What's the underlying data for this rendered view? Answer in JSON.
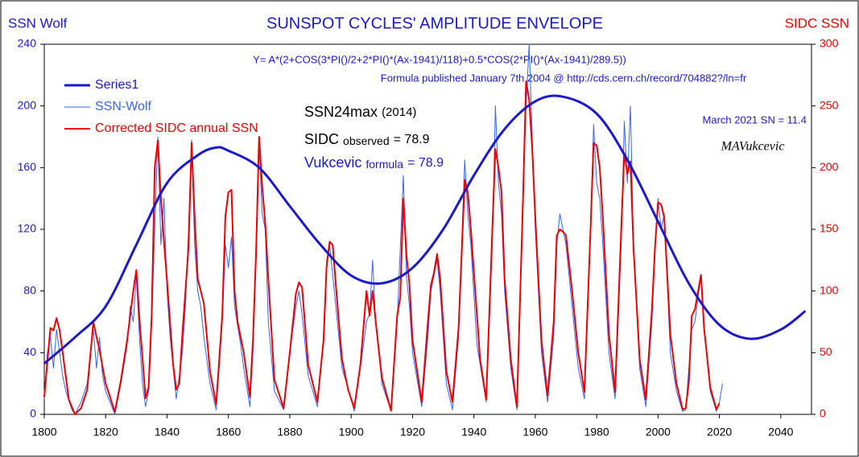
{
  "chart_data": {
    "type": "line",
    "title": "SUNSPOT  CYCLES'  AMPLITUDE  ENVELOPE",
    "y_label": "SSN Wolf",
    "y2_label": "SIDC  SSN",
    "formula": "Y= A*(2+COS(3*PI()/2+2*PI()*(Ax-1941)/118)+0.5*COS(2*PI()*(Ax-1941)/289.5))",
    "formula_note": "Formula published January 7th 2004    @  http://cds.cern.ch/record/704882?/ln=fr",
    "ssn24max": {
      "label": "SSN24max",
      "year": "(2014)"
    },
    "sidc_observed": {
      "label": "SIDC",
      "sub": "observed",
      "value": "= 78.9"
    },
    "vukcevic_formula": {
      "label": "Vukcevic",
      "sub": "formula",
      "value": "= 78.9"
    },
    "march_note": "March 2021 SN = 11.4",
    "signature": "MAVukcevic",
    "legend": "upper left",
    "xlim": [
      1800,
      2050
    ],
    "xticks": [
      1800,
      1820,
      1840,
      1860,
      1880,
      1900,
      1920,
      1940,
      1960,
      1980,
      2000,
      2020,
      2040
    ],
    "ylim": [
      0,
      240
    ],
    "yticks": [
      0,
      40,
      80,
      120,
      160,
      200,
      240
    ],
    "y2lim": [
      0,
      300
    ],
    "y2ticks": [
      0,
      50,
      100,
      150,
      200,
      250,
      300
    ],
    "series": [
      {
        "name": "SSN-Wolf",
        "color": "#3366ff",
        "width": 1,
        "axis": "y",
        "x": [
          1800,
          1801,
          1802,
          1803,
          1804,
          1805,
          1806,
          1807,
          1809,
          1810,
          1812,
          1814,
          1815,
          1816,
          1817,
          1818,
          1819,
          1820,
          1822,
          1823,
          1825,
          1827,
          1828,
          1829,
          1830,
          1831,
          1832,
          1833,
          1834,
          1835,
          1836,
          1837,
          1838,
          1839,
          1840,
          1841,
          1843,
          1845,
          1846,
          1847,
          1848,
          1849,
          1850,
          1851,
          1852,
          1854,
          1856,
          1857,
          1858,
          1859,
          1860,
          1861,
          1862,
          1864,
          1865,
          1867,
          1868,
          1869,
          1870,
          1871,
          1872,
          1873,
          1875,
          1878,
          1880,
          1882,
          1883,
          1884,
          1886,
          1889,
          1891,
          1892,
          1893,
          1894,
          1895,
          1897,
          1900,
          1901,
          1903,
          1905,
          1906,
          1907,
          1908,
          1910,
          1913,
          1915,
          1917,
          1918,
          1919,
          1920,
          1923,
          1925,
          1926,
          1928,
          1929,
          1931,
          1933,
          1935,
          1936,
          1937,
          1938,
          1939,
          1941,
          1944,
          1946,
          1947,
          1948,
          1949,
          1950,
          1952,
          1954,
          1956,
          1957,
          1958,
          1959,
          1960,
          1962,
          1964,
          1966,
          1967,
          1968,
          1969,
          1970,
          1972,
          1974,
          1976,
          1978,
          1979,
          1980,
          1981,
          1982,
          1984,
          1986,
          1988,
          1989,
          1990,
          1991,
          1992,
          1994,
          1996,
          1998,
          1999,
          2000,
          2001,
          2002,
          2004,
          2006,
          2008,
          2009,
          2011,
          2012,
          2014,
          2015,
          2017,
          2019,
          2020,
          2021
        ],
        "values": [
          10,
          40,
          50,
          30,
          55,
          40,
          25,
          15,
          3,
          0,
          8,
          20,
          40,
          55,
          30,
          50,
          25,
          15,
          5,
          0,
          20,
          45,
          70,
          60,
          90,
          50,
          20,
          5,
          15,
          60,
          120,
          180,
          110,
          140,
          80,
          50,
          10,
          40,
          70,
          120,
          178,
          110,
          80,
          70,
          50,
          20,
          3,
          30,
          60,
          110,
          95,
          115,
          70,
          45,
          30,
          5,
          40,
          110,
          175,
          130,
          120,
          60,
          15,
          3,
          40,
          70,
          80,
          65,
          25,
          5,
          50,
          100,
          110,
          90,
          70,
          30,
          10,
          2,
          30,
          60,
          65,
          100,
          60,
          20,
          2,
          60,
          155,
          90,
          70,
          40,
          5,
          50,
          80,
          100,
          80,
          20,
          3,
          50,
          110,
          165,
          130,
          110,
          45,
          8,
          110,
          200,
          150,
          130,
          80,
          30,
          3,
          140,
          200,
          240,
          180,
          120,
          40,
          8,
          50,
          110,
          130,
          120,
          110,
          70,
          30,
          10,
          120,
          188,
          150,
          140,
          110,
          40,
          10,
          110,
          190,
          150,
          200,
          110,
          30,
          5,
          60,
          105,
          140,
          120,
          130,
          40,
          15,
          2,
          3,
          55,
          60,
          90,
          55,
          15,
          2,
          8,
          20
        ]
      },
      {
        "name": "Corrected SIDC annual SSN",
        "color": "#ee0000",
        "width": 2,
        "axis": "y2",
        "x": [
          1800,
          1802,
          1803,
          1804,
          1805,
          1806,
          1808,
          1810,
          1812,
          1814,
          1816,
          1817,
          1818,
          1820,
          1823,
          1825,
          1827,
          1829,
          1830,
          1831,
          1833,
          1834,
          1835,
          1836,
          1837,
          1838,
          1839,
          1840,
          1842,
          1843,
          1844,
          1845,
          1846,
          1847,
          1848,
          1849,
          1850,
          1852,
          1854,
          1856,
          1858,
          1859,
          1860,
          1861,
          1862,
          1863,
          1865,
          1867,
          1868,
          1869,
          1870,
          1871,
          1872,
          1873,
          1875,
          1878,
          1880,
          1882,
          1883,
          1884,
          1886,
          1889,
          1891,
          1892,
          1893,
          1894,
          1895,
          1897,
          1899,
          1901,
          1903,
          1905,
          1906,
          1907,
          1908,
          1910,
          1913,
          1915,
          1916,
          1917,
          1918,
          1919,
          1920,
          1923,
          1925,
          1926,
          1927,
          1928,
          1929,
          1931,
          1933,
          1935,
          1936,
          1937,
          1938,
          1939,
          1940,
          1942,
          1944,
          1946,
          1947,
          1948,
          1949,
          1950,
          1952,
          1954,
          1956,
          1957,
          1958,
          1959,
          1960,
          1962,
          1964,
          1966,
          1967,
          1968,
          1969,
          1970,
          1972,
          1974,
          1976,
          1978,
          1979,
          1980,
          1981,
          1982,
          1984,
          1986,
          1988,
          1989,
          1990,
          1991,
          1992,
          1994,
          1996,
          1998,
          1999,
          2000,
          2001,
          2002,
          2004,
          2006,
          2008,
          2009,
          2010,
          2011,
          2012,
          2014,
          2015,
          2017,
          2019,
          2020
        ],
        "values": [
          14,
          70,
          68,
          78,
          68,
          50,
          12,
          0,
          5,
          20,
          75,
          63,
          52,
          25,
          2,
          28,
          60,
          100,
          117,
          78,
          13,
          22,
          80,
          200,
          222,
          175,
          140,
          108,
          40,
          20,
          25,
          65,
          100,
          135,
          220,
          160,
          110,
          90,
          35,
          8,
          80,
          160,
          180,
          182,
          100,
          75,
          50,
          14,
          60,
          130,
          225,
          185,
          155,
          110,
          28,
          5,
          50,
          98,
          107,
          103,
          40,
          10,
          60,
          120,
          140,
          137,
          105,
          45,
          20,
          5,
          40,
          100,
          80,
          100,
          75,
          30,
          3,
          80,
          95,
          175,
          130,
          105,
          60,
          10,
          75,
          105,
          115,
          130,
          110,
          35,
          10,
          70,
          130,
          190,
          180,
          150,
          115,
          45,
          12,
          150,
          215,
          200,
          180,
          110,
          45,
          6,
          175,
          270,
          255,
          215,
          160,
          60,
          15,
          75,
          145,
          150,
          148,
          145,
          100,
          50,
          18,
          150,
          220,
          218,
          200,
          160,
          65,
          18,
          150,
          212,
          195,
          205,
          135,
          45,
          12,
          85,
          135,
          172,
          170,
          160,
          65,
          25,
          4,
          5,
          25,
          80,
          85,
          113,
          70,
          22,
          4,
          9
        ]
      },
      {
        "name": "Series1",
        "color": "#1a1acc",
        "width": 3,
        "axis": "y",
        "x": [
          1800,
          1810,
          1820,
          1830,
          1840,
          1850,
          1856,
          1860,
          1870,
          1880,
          1890,
          1900,
          1910,
          1920,
          1930,
          1940,
          1950,
          1960,
          1969,
          1980,
          1990,
          2000,
          2010,
          2020,
          2030,
          2040,
          2048
        ],
        "values": [
          33,
          50,
          70,
          110,
          150,
          168,
          173,
          171,
          160,
          135,
          110,
          90,
          85,
          95,
          120,
          155,
          185,
          203,
          206,
          195,
          165,
          125,
          85,
          58,
          49,
          55,
          67
        ]
      }
    ]
  }
}
